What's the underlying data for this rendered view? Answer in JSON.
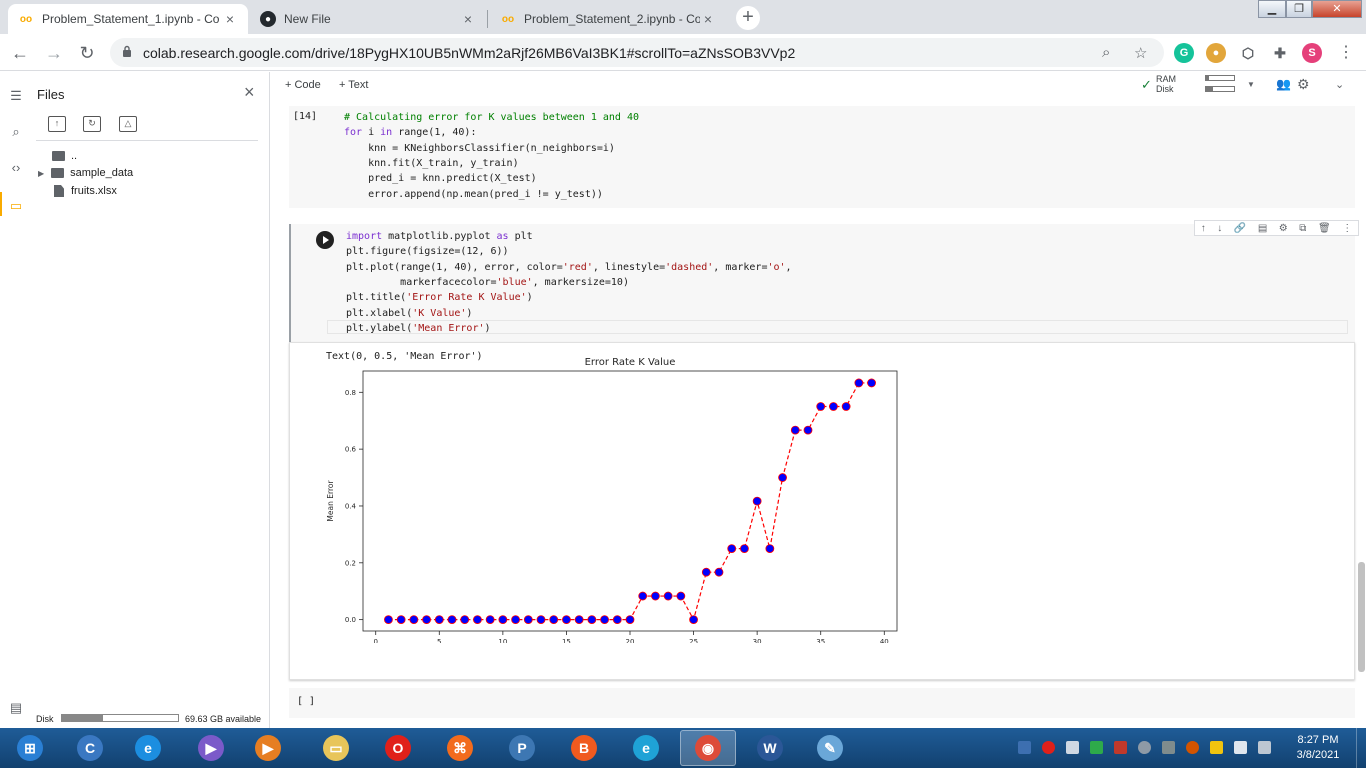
{
  "browser": {
    "tabs": [
      {
        "title": "Problem_Statement_1.ipynb - Co",
        "icon": "colab-icon",
        "active": true
      },
      {
        "title": "New File",
        "icon": "github-icon",
        "active": false
      },
      {
        "title": "Problem_Statement_2.ipynb - Co",
        "icon": "colab-icon",
        "active": false
      }
    ],
    "new_tab": "+",
    "url": "colab.research.google.com/drive/18PygHX10UB5nWMm2aRjf26MB6VaI3BK1#scrollTo=aZNsSOB3VVp2",
    "profile_initial": "S",
    "extensions": [
      {
        "name": "grammarly-icon",
        "letter": "G",
        "color": "#15c39a"
      },
      {
        "name": "cookie-icon",
        "letter": "●",
        "color": "#e2a63b"
      },
      {
        "name": "shield-extension-icon",
        "letter": "⬡",
        "color": "#5f6368"
      },
      {
        "name": "puzzle-extension-icon",
        "letter": "✚",
        "color": "#5f6368"
      }
    ]
  },
  "files_panel": {
    "title": "Files",
    "close": "×",
    "tree": [
      {
        "name": "..",
        "kind": "folder-up"
      },
      {
        "name": "sample_data",
        "kind": "folder"
      },
      {
        "name": "fruits.xlsx",
        "kind": "file"
      }
    ],
    "disk_label": "Disk",
    "disk_available": "69.63 GB available",
    "disk_used_fraction": 0.35
  },
  "notebook": {
    "add_code": "+ Code",
    "add_text": "+ Text",
    "ram_label": "RAM",
    "disk_label": "Disk",
    "ram_fraction": 0.1,
    "disk_fraction": 0.25,
    "cell1": {
      "exec_count": "[14]",
      "lines": [
        {
          "t": "# Calculating error for K values between 1 and 40",
          "cls": "cm"
        },
        {
          "t": "for i in range(1, 40):",
          "cls": ""
        },
        {
          "t": "    knn = KNeighborsClassifier(n_neighbors=i)",
          "cls": ""
        },
        {
          "t": "    knn.fit(X_train, y_train)",
          "cls": ""
        },
        {
          "t": "    pred_i = knn.predict(X_test)",
          "cls": ""
        },
        {
          "t": "    error.append(np.mean(pred_i != y_test))",
          "cls": ""
        }
      ]
    },
    "cell2": {
      "lines": [
        {
          "t": "import matplotlib.pyplot as plt",
          "cls": ""
        },
        {
          "t": "plt.figure(figsize=(12, 6))",
          "cls": ""
        },
        {
          "t": "plt.plot(range(1, 40), error, color='red', linestyle='dashed', marker='o',",
          "cls": ""
        },
        {
          "t": "         markerfacecolor='blue', markersize=10)",
          "cls": ""
        },
        {
          "t": "plt.title('Error Rate K Value')",
          "cls": ""
        },
        {
          "t": "plt.xlabel('K Value')",
          "cls": ""
        },
        {
          "t": "plt.ylabel('Mean Error')",
          "cls": ""
        }
      ],
      "output_text": "Text(0, 0.5, 'Mean Error')",
      "tools": [
        "↑",
        "↓",
        "🔗",
        "▤",
        "⚙",
        "⧉",
        "🗑",
        "⋮"
      ]
    },
    "empty_cell": "[ ]"
  },
  "chart_data": {
    "type": "line",
    "title": "Error Rate K Value",
    "xlabel": "K Value",
    "ylabel": "Mean Error",
    "x": [
      1,
      2,
      3,
      4,
      5,
      6,
      7,
      8,
      9,
      10,
      11,
      12,
      13,
      14,
      15,
      16,
      17,
      18,
      19,
      20,
      21,
      22,
      23,
      24,
      25,
      26,
      27,
      28,
      29,
      30,
      31,
      32,
      33,
      34,
      35,
      36,
      37,
      38,
      39
    ],
    "y": [
      0,
      0,
      0,
      0,
      0,
      0,
      0,
      0,
      0,
      0,
      0,
      0,
      0,
      0,
      0,
      0,
      0,
      0,
      0,
      0,
      0.083,
      0.083,
      0.083,
      0.083,
      0,
      0.167,
      0.167,
      0.25,
      0.25,
      0.417,
      0.25,
      0.5,
      0.667,
      0.667,
      0.75,
      0.75,
      0.75,
      0.833,
      0.833
    ],
    "xlim": [
      -1,
      41
    ],
    "ylim": [
      -0.04,
      0.875
    ],
    "xticks": [
      0,
      5,
      10,
      15,
      20,
      25,
      30,
      35,
      40
    ],
    "yticks": [
      0.0,
      0.2,
      0.4,
      0.6,
      0.8
    ],
    "ytick_labels": [
      "0.0",
      "0.2",
      "0.4",
      "0.6",
      "0.8"
    ],
    "line_color": "#ff0000",
    "marker_color": "#0000ff",
    "grid": false
  },
  "taskbar": {
    "clock_time": "8:27 PM",
    "clock_date": "3/8/2021",
    "apps": [
      {
        "name": "start-orb-icon",
        "letter": "⊞",
        "color": "#2a7fd4"
      },
      {
        "name": "app-c-icon",
        "letter": "C",
        "color": "#3a78c2"
      },
      {
        "name": "internet-explorer-icon",
        "letter": "e",
        "color": "#1c8ee0"
      },
      {
        "name": "visual-studio-icon",
        "letter": "▶",
        "color": "#7b5ac9"
      },
      {
        "name": "media-player-icon",
        "letter": "▶",
        "color": "#e67e22"
      },
      {
        "name": "file-explorer-icon",
        "letter": "▭",
        "color": "#e8c55a"
      },
      {
        "name": "opera-icon",
        "letter": "O",
        "color": "#e0201a"
      },
      {
        "name": "app-orange-icon",
        "letter": "⌘",
        "color": "#f26b1d"
      },
      {
        "name": "python-icon",
        "letter": "P",
        "color": "#3d77b3"
      },
      {
        "name": "brave-icon",
        "letter": "B",
        "color": "#f05a1f"
      },
      {
        "name": "edge-icon",
        "letter": "e",
        "color": "#1fa2d6"
      },
      {
        "name": "chrome-icon",
        "letter": "◉",
        "color": "#dd4b39"
      },
      {
        "name": "word-icon",
        "letter": "W",
        "color": "#2b5797"
      },
      {
        "name": "paint-icon",
        "letter": "✎",
        "color": "#6aa7d8"
      }
    ]
  }
}
